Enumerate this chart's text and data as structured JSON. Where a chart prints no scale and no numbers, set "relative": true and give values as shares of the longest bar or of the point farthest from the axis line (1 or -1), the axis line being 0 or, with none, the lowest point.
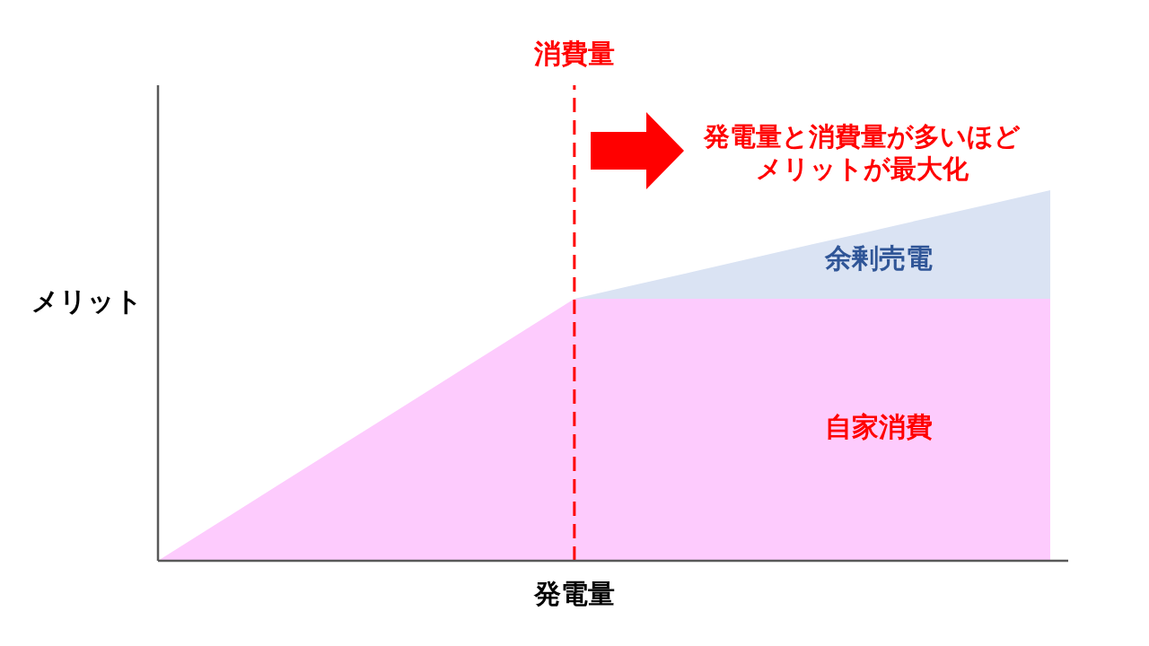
{
  "chart_data": {
    "type": "area",
    "relative": true,
    "stacked": true,
    "xlabel": "発電量",
    "ylabel": "メリット",
    "categories": [
      null,
      null,
      null,
      null,
      null,
      null,
      null,
      null,
      null,
      null,
      null,
      null,
      null,
      null,
      null,
      null
    ],
    "series": [
      {
        "name": "自家消費",
        "color": "#fdcbfd",
        "values": [
          0,
          0.101,
          0.202,
          0.303,
          0.404,
          0.505,
          0.606,
          0.707,
          0.707,
          0.707,
          0.707,
          0.707,
          0.707,
          0.707,
          0.707,
          0.707
        ]
      },
      {
        "name": "余剰売電",
        "color": "#dae3f3",
        "values": [
          0,
          0,
          0,
          0,
          0,
          0,
          0,
          0,
          0.037,
          0.073,
          0.11,
          0.147,
          0.183,
          0.22,
          0.256,
          0.293
        ]
      }
    ],
    "annotations": [
      "消費量",
      "発電量と消費量が多いほどメリットが最大化"
    ]
  }
}
